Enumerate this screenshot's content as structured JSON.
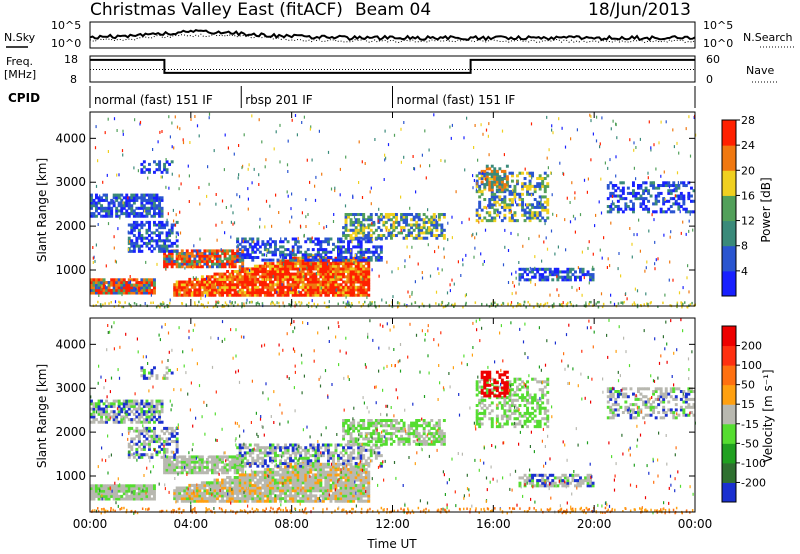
{
  "header": {
    "title": "Christmas Valley East (fitACF)",
    "beam": "Beam 04",
    "date": "18/Jun/2013"
  },
  "labels": {
    "nsky": "N.Sky",
    "nsearch": "N.Search",
    "freq_line1": "Freq.",
    "freq_line2": "[MHz]",
    "nave": "Nave",
    "cpid": "CPID",
    "slant_range": "Slant Range [km]",
    "time_axis": "Time UT",
    "power_cbar": "Power [dB]",
    "velocity_cbar": "Velocity [m s⁻¹]"
  },
  "cpid_segments": [
    {
      "label": "normal (fast) 151 IF",
      "start_h": 0,
      "end_h": 6
    },
    {
      "label": "rbsp 201 IF",
      "start_h": 6,
      "end_h": 12
    },
    {
      "label": "normal (fast) 151 IF",
      "start_h": 12,
      "end_h": 24
    }
  ],
  "chart_data": [
    {
      "type": "line",
      "name": "noise",
      "left_ticks": [
        "10^5",
        "10^0"
      ],
      "right_ticks": [
        "10^5",
        "10^0"
      ],
      "scale": "log"
    },
    {
      "type": "line",
      "name": "frequency",
      "ylim_left": [
        8,
        18
      ],
      "left_ticks": [
        "18",
        "8"
      ],
      "right_ticks": [
        "60",
        "0"
      ],
      "x": [
        0,
        2.95,
        2.95,
        15.1,
        15.1,
        24
      ],
      "values": [
        16.5,
        16.5,
        11.5,
        11.5,
        16.5,
        16.5
      ],
      "nave_level": 12.8
    },
    {
      "type": "heatmap",
      "name": "power",
      "xlabel": "Time UT",
      "ylabel": "Slant Range [km]",
      "xlim": [
        0,
        24
      ],
      "ylim": [
        180,
        4600
      ],
      "x_ticks": [
        "00:00",
        "04:00",
        "08:00",
        "12:00",
        "16:00",
        "20:00",
        "00:00"
      ],
      "y_ticks": [
        "1000",
        "2000",
        "3000",
        "4000"
      ],
      "colorbar": {
        "label": "Power [dB]",
        "ticks": [
          "4",
          "8",
          "12",
          "16",
          "20",
          "24",
          "28"
        ],
        "colors": [
          "#1820ff",
          "#2a55d0",
          "#3a8a7a",
          "#52a05a",
          "#f0d020",
          "#f07810",
          "#ff2000"
        ]
      }
    },
    {
      "type": "heatmap",
      "name": "velocity",
      "xlabel": "Time UT",
      "ylabel": "Slant Range [km]",
      "xlim": [
        0,
        24
      ],
      "ylim": [
        180,
        4600
      ],
      "x_ticks": [
        "00:00",
        "04:00",
        "08:00",
        "12:00",
        "16:00",
        "20:00",
        "00:00"
      ],
      "y_ticks": [
        "1000",
        "2000",
        "3000",
        "4000"
      ],
      "colorbar": {
        "label": "Velocity [m s⁻¹]",
        "ticks": [
          "200",
          "100",
          "50",
          "15",
          "-15",
          "-50",
          "-100",
          "-200"
        ],
        "colors": [
          "#1a30d0",
          "#2f7030",
          "#20a020",
          "#55dd30",
          "#b8b8b0",
          "#ffa010",
          "#ff7010",
          "#ff3010",
          "#ee0000"
        ]
      }
    }
  ]
}
